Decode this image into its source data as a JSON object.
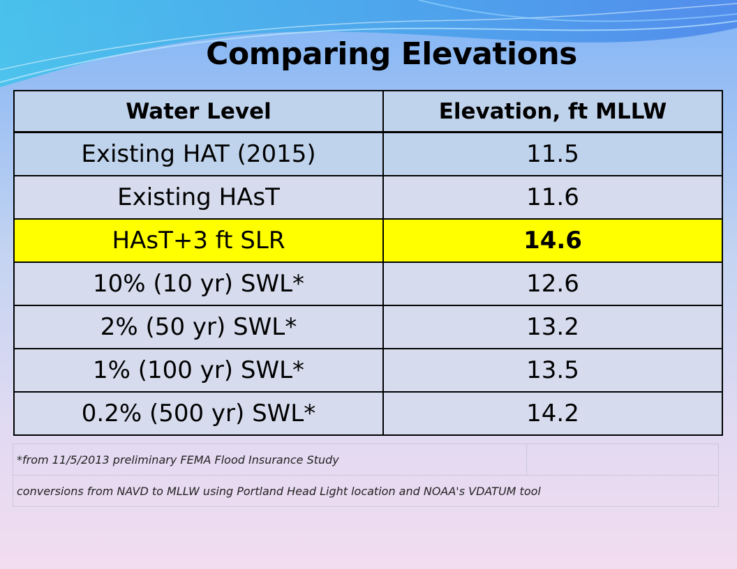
{
  "slide": {
    "title": "Comparing Elevations"
  },
  "table": {
    "headers": [
      "Water Level",
      "Elevation, ft MLLW"
    ],
    "rows": [
      {
        "level": "Existing HAT (2015)",
        "elevation": "11.5",
        "highlighted": false
      },
      {
        "level": "Existing HAsT",
        "elevation": "11.6",
        "highlighted": false
      },
      {
        "level": "HAsT+3 ft SLR",
        "elevation": "14.6",
        "highlighted": true
      },
      {
        "level": "10% (10 yr) SWL*",
        "elevation": "12.6",
        "highlighted": false
      },
      {
        "level": "2% (50 yr) SWL*",
        "elevation": "13.2",
        "highlighted": false
      },
      {
        "level": "1% (100 yr) SWL*",
        "elevation": "13.5",
        "highlighted": false
      },
      {
        "level": "0.2% (500 yr) SWL*",
        "elevation": "14.2",
        "highlighted": false
      }
    ]
  },
  "notes": [
    "*from 11/5/2013 preliminary FEMA Flood Insurance Study",
    "conversions from NAVD to MLLW using Portland Head Light location and NOAA's VDATUM tool"
  ],
  "colors": {
    "highlight": "#ffff00",
    "row_light": "#c0d3ec",
    "row_alt": "#d6dcee"
  }
}
